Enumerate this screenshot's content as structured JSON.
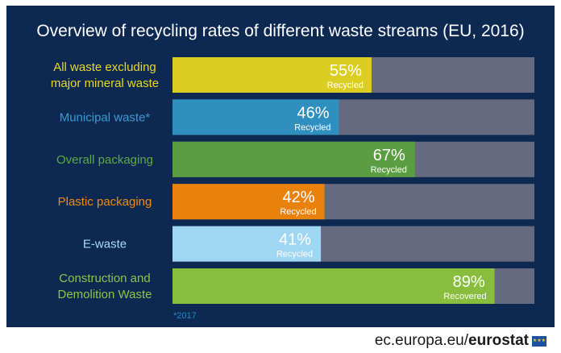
{
  "title": "Overview of  recycling rates of different waste streams (EU, 2016)",
  "chart_data": {
    "type": "bar",
    "orientation": "horizontal",
    "title": "Overview of  recycling rates of different waste streams (EU, 2016)",
    "xlim": [
      0,
      100
    ],
    "categories": [
      {
        "lines": [
          "All waste excluding",
          "major mineral waste"
        ],
        "value": 55,
        "value_label": "55%",
        "sub_label": "Recycled",
        "color": "#dccd23",
        "label_color": "#e8d826"
      },
      {
        "lines": [
          "Municipal waste*"
        ],
        "value": 46,
        "value_label": "46%",
        "sub_label": "Recycled",
        "color": "#2f8fbf",
        "label_color": "#3a9bd0"
      },
      {
        "lines": [
          "Overall packaging"
        ],
        "value": 67,
        "value_label": "67%",
        "sub_label": "Recycled",
        "color": "#5a9d42",
        "label_color": "#5fa845"
      },
      {
        "lines": [
          "Plastic packaging"
        ],
        "value": 42,
        "value_label": "42%",
        "sub_label": "Recycled",
        "color": "#e8820c",
        "label_color": "#f08a10"
      },
      {
        "lines": [
          "E-waste"
        ],
        "value": 41,
        "value_label": "41%",
        "sub_label": "Recycled",
        "color": "#9fd7f3",
        "label_color": "#a8dcf5"
      },
      {
        "lines": [
          "Construction and",
          "Demolition Waste"
        ],
        "value": 89,
        "value_label": "89%",
        "sub_label": "Recovered",
        "color": "#88bd3e",
        "label_color": "#8fc447"
      }
    ],
    "remainder_color": "#666a80"
  },
  "footnote": "*2017",
  "footer": {
    "domain": "ec.europa.eu/",
    "brand": "eurostat"
  }
}
